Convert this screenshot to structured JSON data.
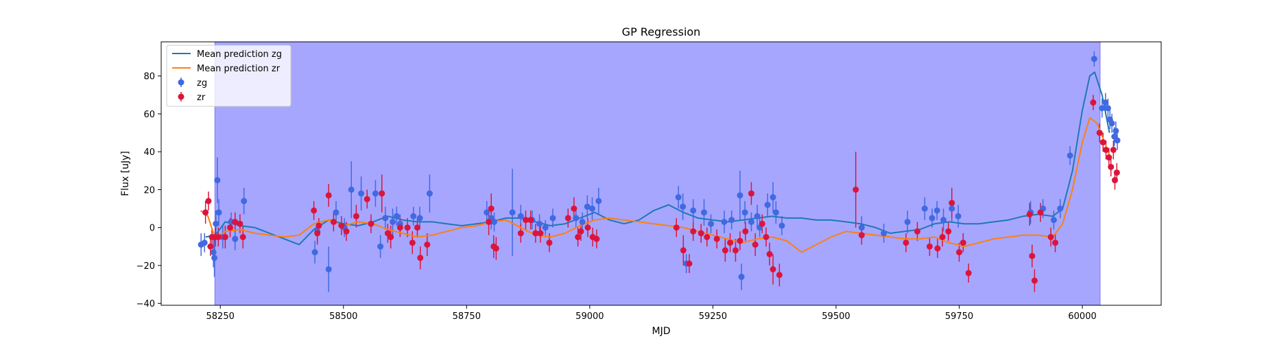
{
  "chart_data": {
    "type": "scatter",
    "title": "GP Regression",
    "xlabel": "MJD",
    "ylabel": "Flux [uJy]",
    "xlim": [
      58130,
      60160
    ],
    "ylim": [
      -41,
      98
    ],
    "xticks": [
      58250,
      58500,
      58750,
      59000,
      59250,
      59500,
      59750,
      60000
    ],
    "yticks": [
      -40,
      -20,
      0,
      20,
      40,
      60,
      80
    ],
    "legend_position": "top-left",
    "shaded_region": {
      "x_start": 58239,
      "x_end": 60036,
      "color": "#a6a6ff"
    },
    "lines": [
      {
        "name": "Mean prediction zg",
        "color": "#1f77b4",
        "x": [
          58220,
          58240,
          58260,
          58290,
          58320,
          58350,
          58380,
          58410,
          58440,
          58470,
          58500,
          58530,
          58560,
          58590,
          58620,
          58650,
          58680,
          58710,
          58740,
          58770,
          58800,
          58830,
          58860,
          58890,
          58920,
          58950,
          58980,
          59010,
          59040,
          59070,
          59100,
          59130,
          59160,
          59190,
          59220,
          59250,
          59280,
          59310,
          59340,
          59370,
          59400,
          59430,
          59460,
          59490,
          59520,
          59550,
          59580,
          59610,
          59640,
          59670,
          59700,
          59730,
          59760,
          59790,
          59820,
          59850,
          59880,
          59910,
          59940,
          59960,
          59980,
          60000,
          60015,
          60025,
          60040,
          60055
        ],
        "y": [
          -5,
          -4,
          3,
          1,
          0,
          -3,
          -6,
          -9,
          -1,
          4,
          2,
          1,
          3,
          6,
          4,
          3,
          3,
          2,
          1,
          2,
          3,
          5,
          5,
          3,
          1,
          2,
          5,
          8,
          4,
          2,
          4,
          9,
          12,
          8,
          5,
          4,
          3,
          4,
          5,
          6,
          5,
          5,
          4,
          4,
          3,
          2,
          0,
          -3,
          -2,
          -1,
          2,
          3,
          2,
          2,
          3,
          4,
          6,
          7,
          6,
          10,
          30,
          62,
          80,
          82,
          70,
          50
        ]
      },
      {
        "name": "Mean prediction zr",
        "color": "#ff7f0e",
        "x": [
          58210,
          58225,
          58240,
          58260,
          58290,
          58320,
          58350,
          58380,
          58410,
          58440,
          58470,
          58500,
          58530,
          58560,
          58590,
          58620,
          58650,
          58680,
          58710,
          58740,
          58770,
          58800,
          58830,
          58860,
          58890,
          58920,
          58950,
          58980,
          59010,
          59040,
          59070,
          59100,
          59130,
          59160,
          59190,
          59220,
          59250,
          59280,
          59310,
          59340,
          59370,
          59400,
          59430,
          59460,
          59490,
          59520,
          59550,
          59580,
          59610,
          59640,
          59670,
          59700,
          59730,
          59760,
          59790,
          59820,
          59850,
          59880,
          59910,
          59940,
          59960,
          59980,
          60000,
          60015,
          60030,
          60045,
          60055
        ],
        "y": [
          9,
          6,
          -6,
          -2,
          -1,
          -3,
          -4,
          -5,
          -4,
          2,
          4,
          1,
          3,
          2,
          -1,
          -3,
          -5,
          -4,
          -2,
          0,
          1,
          3,
          4,
          0,
          -4,
          -5,
          -3,
          1,
          4,
          5,
          4,
          3,
          2,
          1,
          0,
          -2,
          -4,
          -6,
          -8,
          -6,
          -5,
          -7,
          -13,
          -9,
          -5,
          -2,
          -3,
          -4,
          -5,
          -6,
          -6,
          -5,
          -8,
          -10,
          -8,
          -6,
          -5,
          -4,
          -4,
          -5,
          2,
          20,
          45,
          58,
          55,
          45,
          38
        ]
      }
    ],
    "series": [
      {
        "name": "zg",
        "color": "#4169e1",
        "points": [
          [
            58211,
            -9,
            6
          ],
          [
            58218,
            -8,
            5
          ],
          [
            58236,
            -13,
            8
          ],
          [
            58238,
            -16,
            10
          ],
          [
            58241,
            2,
            7
          ],
          [
            58244,
            25,
            12
          ],
          [
            58247,
            8,
            7
          ],
          [
            58255,
            -5,
            6
          ],
          [
            58272,
            3,
            5
          ],
          [
            58280,
            -6,
            6
          ],
          [
            58298,
            14,
            7
          ],
          [
            58442,
            -13,
            6
          ],
          [
            58447,
            -2,
            5
          ],
          [
            58470,
            -22,
            12
          ],
          [
            58485,
            8,
            6
          ],
          [
            58502,
            0,
            5
          ],
          [
            58516,
            20,
            15
          ],
          [
            58536,
            18,
            9
          ],
          [
            58565,
            18,
            7
          ],
          [
            58575,
            -10,
            6
          ],
          [
            58585,
            5,
            6
          ],
          [
            58600,
            3,
            7
          ],
          [
            58608,
            6,
            5
          ],
          [
            58615,
            2,
            5
          ],
          [
            58642,
            6,
            5
          ],
          [
            58655,
            5,
            6
          ],
          [
            58675,
            18,
            10
          ],
          [
            58791,
            8,
            6
          ],
          [
            58800,
            5,
            6
          ],
          [
            58806,
            3,
            5
          ],
          [
            58843,
            8,
            23
          ],
          [
            58860,
            6,
            6
          ],
          [
            58883,
            4,
            5
          ],
          [
            58898,
            2,
            5
          ],
          [
            58910,
            0,
            4
          ],
          [
            58925,
            5,
            5
          ],
          [
            58972,
            5,
            5
          ],
          [
            58985,
            3,
            5
          ],
          [
            58995,
            11,
            6
          ],
          [
            59005,
            10,
            6
          ],
          [
            59018,
            14,
            7
          ],
          [
            59180,
            16,
            6
          ],
          [
            59189,
            11,
            7
          ],
          [
            59196,
            -19,
            5
          ],
          [
            59210,
            9,
            6
          ],
          [
            59232,
            8,
            7
          ],
          [
            59246,
            2,
            5
          ],
          [
            59273,
            3,
            6
          ],
          [
            59288,
            4,
            5
          ],
          [
            59305,
            17,
            13
          ],
          [
            59308,
            -26,
            7
          ],
          [
            59315,
            8,
            6
          ],
          [
            59328,
            3,
            5
          ],
          [
            59340,
            6,
            6
          ],
          [
            59345,
            0,
            5
          ],
          [
            59361,
            12,
            6
          ],
          [
            59372,
            16,
            8
          ],
          [
            59378,
            8,
            6
          ],
          [
            59390,
            1,
            5
          ],
          [
            59552,
            0,
            6
          ],
          [
            59597,
            -3,
            5
          ],
          [
            59645,
            3,
            6
          ],
          [
            59680,
            10,
            6
          ],
          [
            59695,
            5,
            5
          ],
          [
            59705,
            9,
            5
          ],
          [
            59718,
            4,
            6
          ],
          [
            59735,
            10,
            7
          ],
          [
            59748,
            6,
            6
          ],
          [
            59895,
            8,
            6
          ],
          [
            59920,
            10,
            5
          ],
          [
            59942,
            4,
            5
          ],
          [
            59955,
            10,
            5
          ],
          [
            59975,
            38,
            5
          ],
          [
            60024,
            89,
            4
          ],
          [
            60040,
            63,
            5
          ],
          [
            60047,
            66,
            5
          ],
          [
            60052,
            63,
            5
          ],
          [
            60056,
            57,
            5
          ],
          [
            60060,
            55,
            5
          ],
          [
            60065,
            48,
            5
          ],
          [
            60068,
            51,
            5
          ],
          [
            60071,
            46,
            5
          ]
        ]
      },
      {
        "name": "zr",
        "color": "#dc143c",
        "points": [
          [
            58220,
            8,
            6
          ],
          [
            58226,
            14,
            5
          ],
          [
            58230,
            -10,
            5
          ],
          [
            58233,
            -5,
            5
          ],
          [
            58240,
            -5,
            5
          ],
          [
            58246,
            -5,
            5
          ],
          [
            58260,
            -5,
            6
          ],
          [
            58270,
            0,
            5
          ],
          [
            58280,
            3,
            5
          ],
          [
            58290,
            2,
            5
          ],
          [
            58296,
            -5,
            6
          ],
          [
            58440,
            9,
            5
          ],
          [
            58447,
            -3,
            6
          ],
          [
            58450,
            1,
            4
          ],
          [
            58470,
            17,
            6
          ],
          [
            58480,
            3,
            5
          ],
          [
            58496,
            1,
            5
          ],
          [
            58506,
            -2,
            5
          ],
          [
            58526,
            6,
            6
          ],
          [
            58548,
            15,
            5
          ],
          [
            58556,
            2,
            5
          ],
          [
            58578,
            18,
            10
          ],
          [
            58590,
            -3,
            5
          ],
          [
            58596,
            -5,
            6
          ],
          [
            58615,
            0,
            5
          ],
          [
            58630,
            0,
            5
          ],
          [
            58640,
            -8,
            6
          ],
          [
            58650,
            0,
            5
          ],
          [
            58656,
            -16,
            6
          ],
          [
            58670,
            -9,
            6
          ],
          [
            58795,
            3,
            7
          ],
          [
            58800,
            10,
            8
          ],
          [
            58805,
            -10,
            6
          ],
          [
            58810,
            -11,
            6
          ],
          [
            58860,
            -3,
            5
          ],
          [
            58870,
            4,
            5
          ],
          [
            58880,
            4,
            5
          ],
          [
            58890,
            -3,
            5
          ],
          [
            58900,
            -3,
            5
          ],
          [
            58918,
            -8,
            5
          ],
          [
            58956,
            5,
            5
          ],
          [
            58968,
            10,
            6
          ],
          [
            58976,
            -5,
            5
          ],
          [
            58982,
            -2,
            5
          ],
          [
            58996,
            0,
            5
          ],
          [
            59006,
            -5,
            5
          ],
          [
            59014,
            -6,
            5
          ],
          [
            59176,
            0,
            5
          ],
          [
            59190,
            -12,
            8
          ],
          [
            59202,
            -19,
            5
          ],
          [
            59210,
            -2,
            5
          ],
          [
            59226,
            -3,
            5
          ],
          [
            59238,
            -5,
            5
          ],
          [
            59258,
            -6,
            5
          ],
          [
            59275,
            -12,
            6
          ],
          [
            59285,
            -8,
            5
          ],
          [
            59296,
            -12,
            6
          ],
          [
            59305,
            -7,
            5
          ],
          [
            59316,
            -2,
            5
          ],
          [
            59328,
            18,
            6
          ],
          [
            59336,
            -9,
            6
          ],
          [
            59350,
            2,
            5
          ],
          [
            59358,
            -5,
            5
          ],
          [
            59365,
            -14,
            6
          ],
          [
            59372,
            -22,
            8
          ],
          [
            59385,
            -25,
            6
          ],
          [
            59540,
            20,
            20
          ],
          [
            59552,
            -4,
            5
          ],
          [
            59642,
            -8,
            5
          ],
          [
            59665,
            -2,
            5
          ],
          [
            59690,
            -10,
            5
          ],
          [
            59706,
            -11,
            5
          ],
          [
            59716,
            -5,
            5
          ],
          [
            59728,
            -2,
            5
          ],
          [
            59735,
            13,
            8
          ],
          [
            59750,
            -13,
            5
          ],
          [
            59758,
            -8,
            5
          ],
          [
            59769,
            -24,
            5
          ],
          [
            59893,
            7,
            6
          ],
          [
            59898,
            -15,
            6
          ],
          [
            59903,
            -28,
            6
          ],
          [
            59915,
            8,
            5
          ],
          [
            59936,
            -5,
            5
          ],
          [
            59945,
            -8,
            5
          ],
          [
            60022,
            66,
            4
          ],
          [
            60035,
            50,
            5
          ],
          [
            60042,
            45,
            5
          ],
          [
            60048,
            41,
            5
          ],
          [
            60054,
            37,
            5
          ],
          [
            60058,
            32,
            5
          ],
          [
            60063,
            41,
            5
          ],
          [
            60066,
            25,
            5
          ],
          [
            60070,
            29,
            5
          ]
        ]
      }
    ]
  }
}
